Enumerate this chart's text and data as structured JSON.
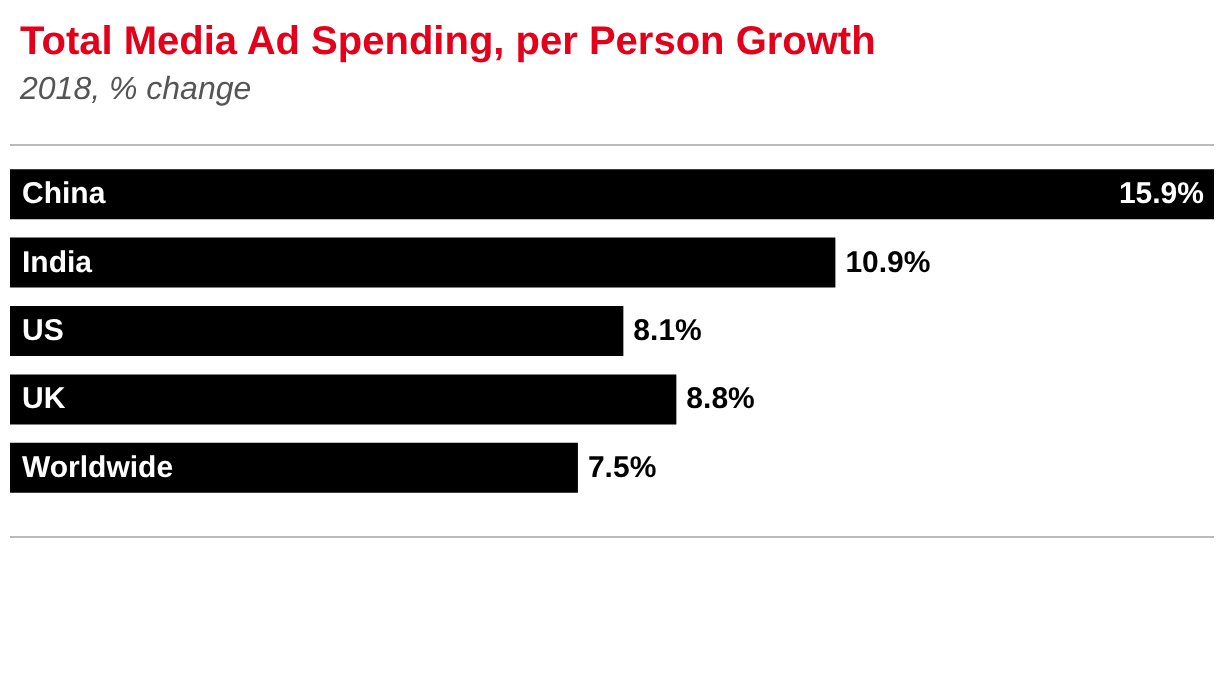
{
  "chart_data": {
    "type": "bar",
    "orientation": "horizontal",
    "title": "Total Media Ad Spending, per Person Growth",
    "subtitle": "2018, % change",
    "categories": [
      "China",
      "India",
      "US",
      "UK",
      "Worldwide"
    ],
    "values": [
      15.9,
      10.9,
      8.1,
      8.8,
      7.5
    ],
    "value_labels": [
      "15.9%",
      "10.9%",
      "8.1%",
      "8.8%",
      "7.5%"
    ],
    "color": "#000000",
    "grid": false
  }
}
